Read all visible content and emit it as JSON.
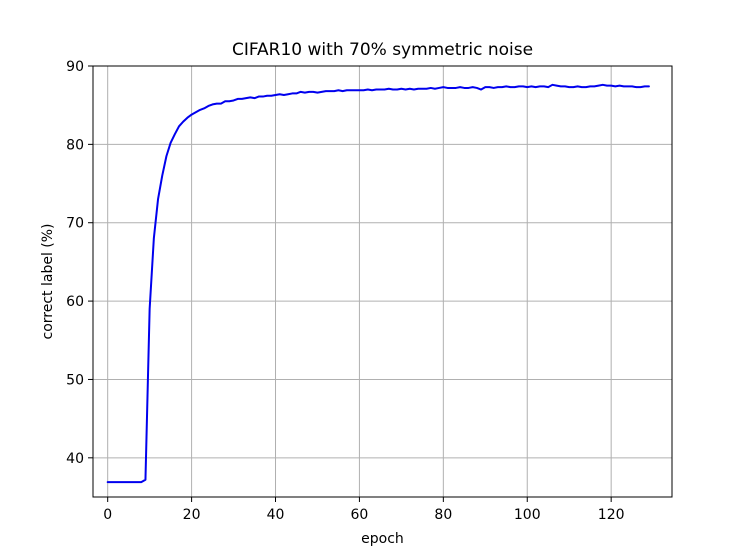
{
  "chart_data": {
    "type": "line",
    "title": "CIFAR10 with 70% symmetric noise",
    "xlabel": "epoch",
    "ylabel": "correct label (%)",
    "xlim": [
      -3.5,
      134.5
    ],
    "ylim": [
      35,
      90
    ],
    "xticks": [
      0,
      20,
      40,
      60,
      80,
      100,
      120
    ],
    "yticks": [
      40,
      50,
      60,
      70,
      80,
      90
    ],
    "grid": true,
    "legend": "none",
    "colors": {
      "line": "#0000ee",
      "grid": "#b0b0b0",
      "axes": "#000000"
    },
    "series": [
      {
        "x": [
          0,
          1,
          2,
          3,
          4,
          5,
          6,
          7,
          8,
          9,
          10,
          11,
          12,
          13,
          14,
          15,
          16,
          17,
          18,
          19,
          20,
          21,
          22,
          23,
          24,
          25,
          26,
          27,
          28,
          29,
          30,
          31,
          32,
          33,
          34,
          35,
          36,
          37,
          38,
          39,
          40,
          41,
          42,
          43,
          44,
          45,
          46,
          47,
          48,
          49,
          50,
          51,
          52,
          53,
          54,
          55,
          56,
          57,
          58,
          59,
          60,
          61,
          62,
          63,
          64,
          65,
          66,
          67,
          68,
          69,
          70,
          71,
          72,
          73,
          74,
          75,
          76,
          77,
          78,
          79,
          80,
          81,
          82,
          83,
          84,
          85,
          86,
          87,
          88,
          89,
          90,
          91,
          92,
          93,
          94,
          95,
          96,
          97,
          98,
          99,
          100,
          101,
          102,
          103,
          104,
          105,
          106,
          107,
          108,
          109,
          110,
          111,
          112,
          113,
          114,
          115,
          116,
          117,
          118,
          119,
          120,
          121,
          122,
          123,
          124,
          125,
          126,
          127,
          128,
          129
        ],
        "values": [
          36.9,
          36.9,
          36.9,
          36.9,
          36.9,
          36.9,
          36.9,
          36.9,
          36.9,
          37.2,
          59.0,
          68.0,
          73.0,
          76.0,
          78.5,
          80.2,
          81.3,
          82.3,
          82.9,
          83.4,
          83.8,
          84.1,
          84.4,
          84.6,
          84.9,
          85.1,
          85.2,
          85.2,
          85.5,
          85.5,
          85.6,
          85.8,
          85.8,
          85.9,
          86.0,
          85.9,
          86.1,
          86.1,
          86.2,
          86.2,
          86.3,
          86.4,
          86.3,
          86.4,
          86.5,
          86.5,
          86.7,
          86.6,
          86.7,
          86.7,
          86.6,
          86.7,
          86.8,
          86.8,
          86.8,
          86.9,
          86.8,
          86.9,
          86.9,
          86.9,
          86.9,
          86.9,
          87.0,
          86.9,
          87.0,
          87.0,
          87.0,
          87.1,
          87.0,
          87.0,
          87.1,
          87.0,
          87.1,
          87.0,
          87.1,
          87.1,
          87.1,
          87.2,
          87.1,
          87.2,
          87.3,
          87.2,
          87.2,
          87.2,
          87.3,
          87.2,
          87.2,
          87.3,
          87.2,
          87.0,
          87.3,
          87.3,
          87.2,
          87.3,
          87.3,
          87.4,
          87.3,
          87.3,
          87.4,
          87.4,
          87.3,
          87.4,
          87.3,
          87.4,
          87.4,
          87.3,
          87.6,
          87.5,
          87.4,
          87.4,
          87.3,
          87.3,
          87.4,
          87.3,
          87.3,
          87.4,
          87.4,
          87.5,
          87.6,
          87.5,
          87.5,
          87.4,
          87.5,
          87.4,
          87.4,
          87.4,
          87.3,
          87.3,
          87.4,
          87.4
        ]
      }
    ]
  }
}
